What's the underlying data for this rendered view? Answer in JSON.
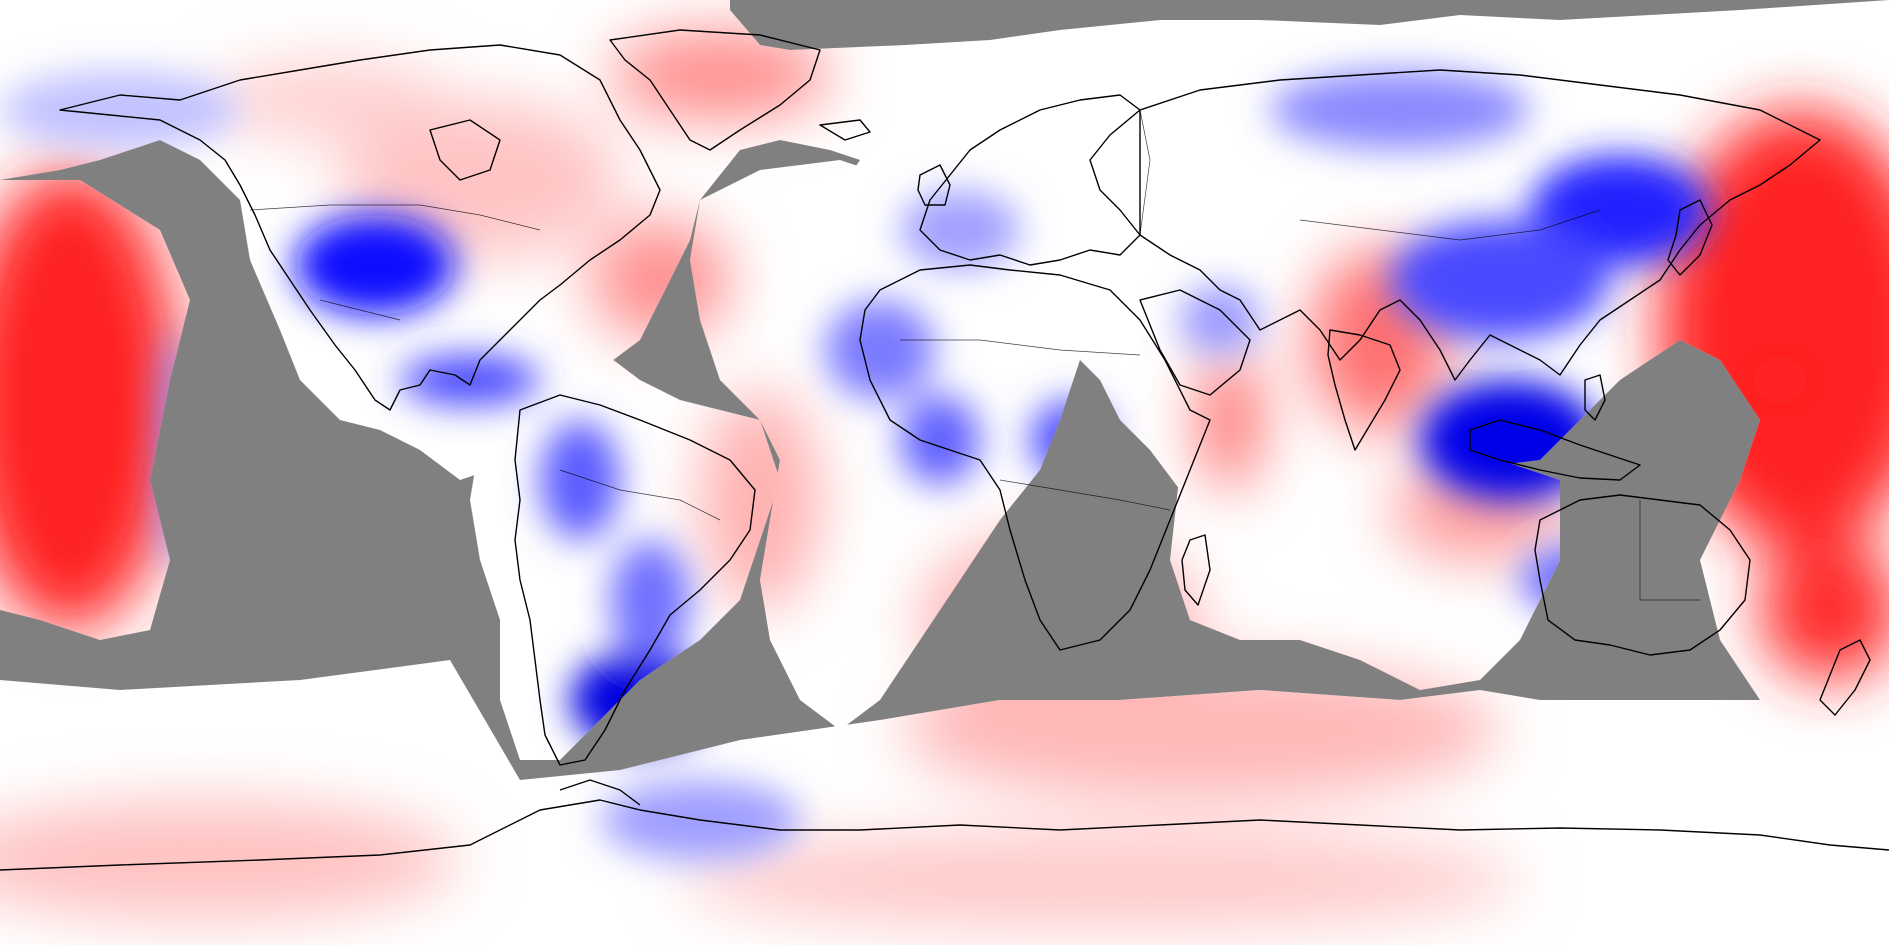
{
  "map": {
    "projection": "equirectangular",
    "colors": {
      "no_data": "#808080",
      "neutral": "#ffffff",
      "positive": "#ff0000",
      "negative": "#0000ff",
      "coastline": "#000000"
    },
    "positive_regions": [
      "north-pacific",
      "north-pacific-west",
      "greenland",
      "north-america-northeast",
      "north-atlantic",
      "india",
      "indian-ocean-west",
      "southern-africa",
      "south-atlantic-coast",
      "south-indian-ocean",
      "new-zealand",
      "antarctic-ocean"
    ],
    "negative_regions": [
      "north-america-west",
      "central-america",
      "south-america-west",
      "patagonia",
      "sahel",
      "central-africa",
      "east-asia",
      "southeast-asia",
      "australia-west",
      "antarctic-peninsula"
    ]
  }
}
